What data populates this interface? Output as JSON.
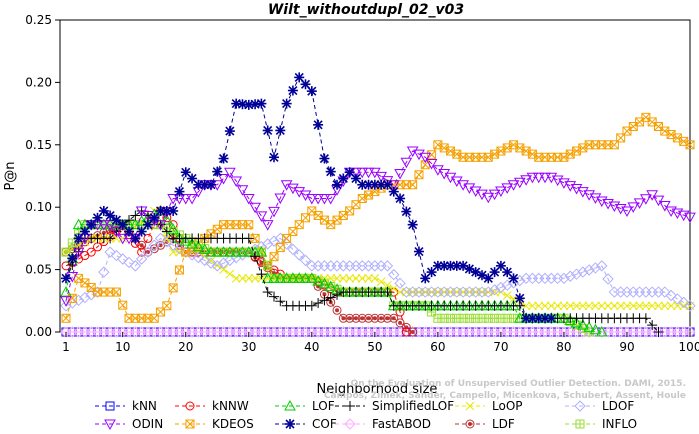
{
  "chart_data": {
    "type": "line",
    "title": "Wilt_withoutdupl_02_v03",
    "xlabel": "Neighborhood size",
    "ylabel": "P@n",
    "xlim": [
      1,
      100
    ],
    "ylim": [
      0,
      0.25
    ],
    "x_ticks": [
      1,
      10,
      20,
      30,
      40,
      50,
      60,
      70,
      80,
      90,
      100
    ],
    "y_ticks": [
      "0.00",
      "0.05",
      "0.10",
      "0.15",
      "0.20",
      "0.25"
    ],
    "legend_position": "bottom",
    "credit": [
      "Campos, Zimek, Sander, Campello, Micenkova, Schubert, Assent, Houle",
      "On the Evaluation of Unsupervised Outlier Detection. DAMI, 2015."
    ],
    "series": [
      {
        "name": "kNN",
        "color": "#0000ff",
        "marker": "square",
        "points": [
          [
            1,
            0
          ],
          [
            100,
            0
          ]
        ]
      },
      {
        "name": "kNNW",
        "color": "#ff0000",
        "marker": "circle",
        "points": [
          [
            1,
            0.053
          ],
          [
            5,
            0.064
          ],
          [
            10,
            0.085
          ],
          [
            13,
            0.064
          ],
          [
            16,
            0.097
          ],
          [
            18,
            0.086
          ],
          [
            20,
            0.064
          ],
          [
            25,
            0.064
          ],
          [
            30,
            0.064
          ],
          [
            33,
            0.053
          ],
          [
            36,
            0.043
          ],
          [
            40,
            0.043
          ],
          [
            44,
            0.032
          ],
          [
            50,
            0.032
          ],
          [
            53,
            0.032
          ],
          [
            55,
            0
          ]
        ]
      },
      {
        "name": "LOF",
        "color": "#00cc00",
        "marker": "triangle-up",
        "points": [
          [
            1,
            0.032
          ],
          [
            3,
            0.086
          ],
          [
            8,
            0.086
          ],
          [
            12,
            0.086
          ],
          [
            16,
            0.097
          ],
          [
            19,
            0.075
          ],
          [
            24,
            0.064
          ],
          [
            28,
            0.064
          ],
          [
            32,
            0.064
          ],
          [
            33,
            0.043
          ],
          [
            40,
            0.043
          ],
          [
            45,
            0.032
          ],
          [
            52,
            0.032
          ],
          [
            53,
            0.021
          ],
          [
            60,
            0.021
          ],
          [
            72,
            0.021
          ],
          [
            73,
            0.011
          ],
          [
            80,
            0.011
          ],
          [
            86,
            0
          ]
        ]
      },
      {
        "name": "SimplifiedLOF",
        "color": "#000000",
        "marker": "plus",
        "points": [
          [
            1,
            0.043
          ],
          [
            4,
            0.075
          ],
          [
            8,
            0.075
          ],
          [
            10,
            0.086
          ],
          [
            13,
            0.097
          ],
          [
            16,
            0.086
          ],
          [
            18,
            0.075
          ],
          [
            22,
            0.075
          ],
          [
            26,
            0.075
          ],
          [
            30,
            0.075
          ],
          [
            33,
            0.032
          ],
          [
            36,
            0.021
          ],
          [
            40,
            0.021
          ],
          [
            45,
            0.032
          ],
          [
            52,
            0.032
          ],
          [
            53,
            0.021
          ],
          [
            60,
            0.021
          ],
          [
            73,
            0.021
          ],
          [
            74,
            0.011
          ],
          [
            85,
            0.011
          ],
          [
            93,
            0.011
          ],
          [
            95,
            0
          ]
        ]
      },
      {
        "name": "LoOP",
        "color": "#e8e800",
        "marker": "x",
        "points": [
          [
            1,
            0.064
          ],
          [
            5,
            0.075
          ],
          [
            10,
            0.075
          ],
          [
            15,
            0.097
          ],
          [
            18,
            0.064
          ],
          [
            22,
            0.064
          ],
          [
            28,
            0.043
          ],
          [
            33,
            0.043
          ],
          [
            40,
            0.043
          ],
          [
            50,
            0.043
          ],
          [
            54,
            0.032
          ],
          [
            60,
            0.032
          ],
          [
            70,
            0.032
          ],
          [
            74,
            0.021
          ],
          [
            100,
            0.021
          ]
        ]
      },
      {
        "name": "LDOF",
        "color": "#b0b0ff",
        "marker": "diamond",
        "points": [
          [
            1,
            0.021
          ],
          [
            6,
            0.032
          ],
          [
            8,
            0.064
          ],
          [
            12,
            0.053
          ],
          [
            16,
            0.075
          ],
          [
            20,
            0.064
          ],
          [
            25,
            0.053
          ],
          [
            30,
            0.064
          ],
          [
            35,
            0.075
          ],
          [
            40,
            0.053
          ],
          [
            46,
            0.053
          ],
          [
            52,
            0.053
          ],
          [
            55,
            0.032
          ],
          [
            62,
            0.032
          ],
          [
            68,
            0.032
          ],
          [
            74,
            0.043
          ],
          [
            80,
            0.043
          ],
          [
            86,
            0.053
          ],
          [
            88,
            0.032
          ],
          [
            92,
            0.032
          ],
          [
            96,
            0.032
          ],
          [
            100,
            0.021
          ]
        ]
      },
      {
        "name": "ODIN",
        "color": "#9900ff",
        "marker": "triangle-down",
        "points": [
          [
            1,
            0.025
          ],
          [
            3,
            0.064
          ],
          [
            5,
            0.086
          ],
          [
            8,
            0.086
          ],
          [
            10,
            0.075
          ],
          [
            12,
            0.075
          ],
          [
            13,
            0.097
          ],
          [
            16,
            0.086
          ],
          [
            18,
            0.107
          ],
          [
            21,
            0.107
          ],
          [
            23,
            0.118
          ],
          [
            25,
            0.118
          ],
          [
            27,
            0.128
          ],
          [
            30,
            0.107
          ],
          [
            33,
            0.086
          ],
          [
            36,
            0.118
          ],
          [
            40,
            0.107
          ],
          [
            43,
            0.107
          ],
          [
            46,
            0.128
          ],
          [
            50,
            0.128
          ],
          [
            53,
            0.118
          ],
          [
            56,
            0.145
          ],
          [
            58,
            0.14
          ],
          [
            60,
            0.13
          ],
          [
            64,
            0.118
          ],
          [
            68,
            0.108
          ],
          [
            72,
            0.118
          ],
          [
            75,
            0.124
          ],
          [
            78,
            0.124
          ],
          [
            82,
            0.115
          ],
          [
            86,
            0.105
          ],
          [
            90,
            0.097
          ],
          [
            94,
            0.11
          ],
          [
            97,
            0.097
          ],
          [
            100,
            0.092
          ]
        ]
      },
      {
        "name": "KDEOS",
        "color": "#f5a000",
        "marker": "square-x",
        "points": [
          [
            1,
            0.011
          ],
          [
            3,
            0.043
          ],
          [
            6,
            0.032
          ],
          [
            9,
            0.032
          ],
          [
            11,
            0.011
          ],
          [
            13,
            0.011
          ],
          [
            15,
            0.011
          ],
          [
            17,
            0.021
          ],
          [
            20,
            0.064
          ],
          [
            23,
            0.075
          ],
          [
            26,
            0.086
          ],
          [
            30,
            0.086
          ],
          [
            33,
            0.053
          ],
          [
            36,
            0.075
          ],
          [
            40,
            0.097
          ],
          [
            43,
            0.086
          ],
          [
            46,
            0.097
          ],
          [
            48,
            0.107
          ],
          [
            52,
            0.118
          ],
          [
            56,
            0.118
          ],
          [
            60,
            0.15
          ],
          [
            64,
            0.14
          ],
          [
            68,
            0.14
          ],
          [
            72,
            0.15
          ],
          [
            76,
            0.14
          ],
          [
            80,
            0.14
          ],
          [
            84,
            0.15
          ],
          [
            88,
            0.15
          ],
          [
            90,
            0.161
          ],
          [
            93,
            0.172
          ],
          [
            96,
            0.161
          ],
          [
            100,
            0.15
          ]
        ]
      },
      {
        "name": "COF",
        "color": "#000099",
        "marker": "asterisk",
        "points": [
          [
            1,
            0.043
          ],
          [
            3,
            0.075
          ],
          [
            5,
            0.086
          ],
          [
            7,
            0.097
          ],
          [
            10,
            0.086
          ],
          [
            12,
            0.075
          ],
          [
            14,
            0.086
          ],
          [
            16,
            0.097
          ],
          [
            18,
            0.097
          ],
          [
            20,
            0.128
          ],
          [
            22,
            0.118
          ],
          [
            24,
            0.118
          ],
          [
            26,
            0.139
          ],
          [
            28,
            0.183
          ],
          [
            30,
            0.182
          ],
          [
            32,
            0.183
          ],
          [
            34,
            0.14
          ],
          [
            36,
            0.183
          ],
          [
            38,
            0.204
          ],
          [
            40,
            0.193
          ],
          [
            42,
            0.139
          ],
          [
            44,
            0.118
          ],
          [
            46,
            0.128
          ],
          [
            48,
            0.118
          ],
          [
            50,
            0.118
          ],
          [
            52,
            0.118
          ],
          [
            54,
            0.107
          ],
          [
            56,
            0.086
          ],
          [
            58,
            0.043
          ],
          [
            60,
            0.053
          ],
          [
            64,
            0.053
          ],
          [
            68,
            0.043
          ],
          [
            70,
            0.053
          ],
          [
            72,
            0.043
          ],
          [
            74,
            0.011
          ],
          [
            76,
            0.011
          ],
          [
            78,
            0.011
          ]
        ]
      },
      {
        "name": "LDF",
        "color": "#bb3333",
        "marker": "circle-dot",
        "points": [
          [
            1,
            0.064
          ],
          [
            5,
            0.075
          ],
          [
            10,
            0.086
          ],
          [
            14,
            0.064
          ],
          [
            18,
            0.075
          ],
          [
            20,
            0.064
          ],
          [
            25,
            0.064
          ],
          [
            30,
            0.064
          ],
          [
            35,
            0.043
          ],
          [
            40,
            0.043
          ],
          [
            45,
            0.011
          ],
          [
            50,
            0.011
          ],
          [
            53,
            0.011
          ],
          [
            56,
            0
          ]
        ]
      },
      {
        "name": "FastABOD",
        "color": "#ffaaff",
        "marker": "diamond-x",
        "points": [
          [
            1,
            0
          ],
          [
            100,
            0
          ]
        ]
      },
      {
        "name": "INFLO",
        "color": "#99dd33",
        "marker": "square-cross",
        "points": [
          [
            1,
            0.064
          ],
          [
            4,
            0.086
          ],
          [
            8,
            0.086
          ],
          [
            12,
            0.086
          ],
          [
            16,
            0.086
          ],
          [
            20,
            0.075
          ],
          [
            24,
            0.064
          ],
          [
            28,
            0.064
          ],
          [
            32,
            0.064
          ],
          [
            34,
            0.043
          ],
          [
            40,
            0.043
          ],
          [
            45,
            0.032
          ],
          [
            52,
            0.032
          ],
          [
            53,
            0.021
          ],
          [
            58,
            0.021
          ],
          [
            60,
            0.011
          ],
          [
            72,
            0.011
          ],
          [
            76,
            0.011
          ],
          [
            80,
            0.011
          ],
          [
            84,
            0
          ]
        ]
      }
    ]
  }
}
